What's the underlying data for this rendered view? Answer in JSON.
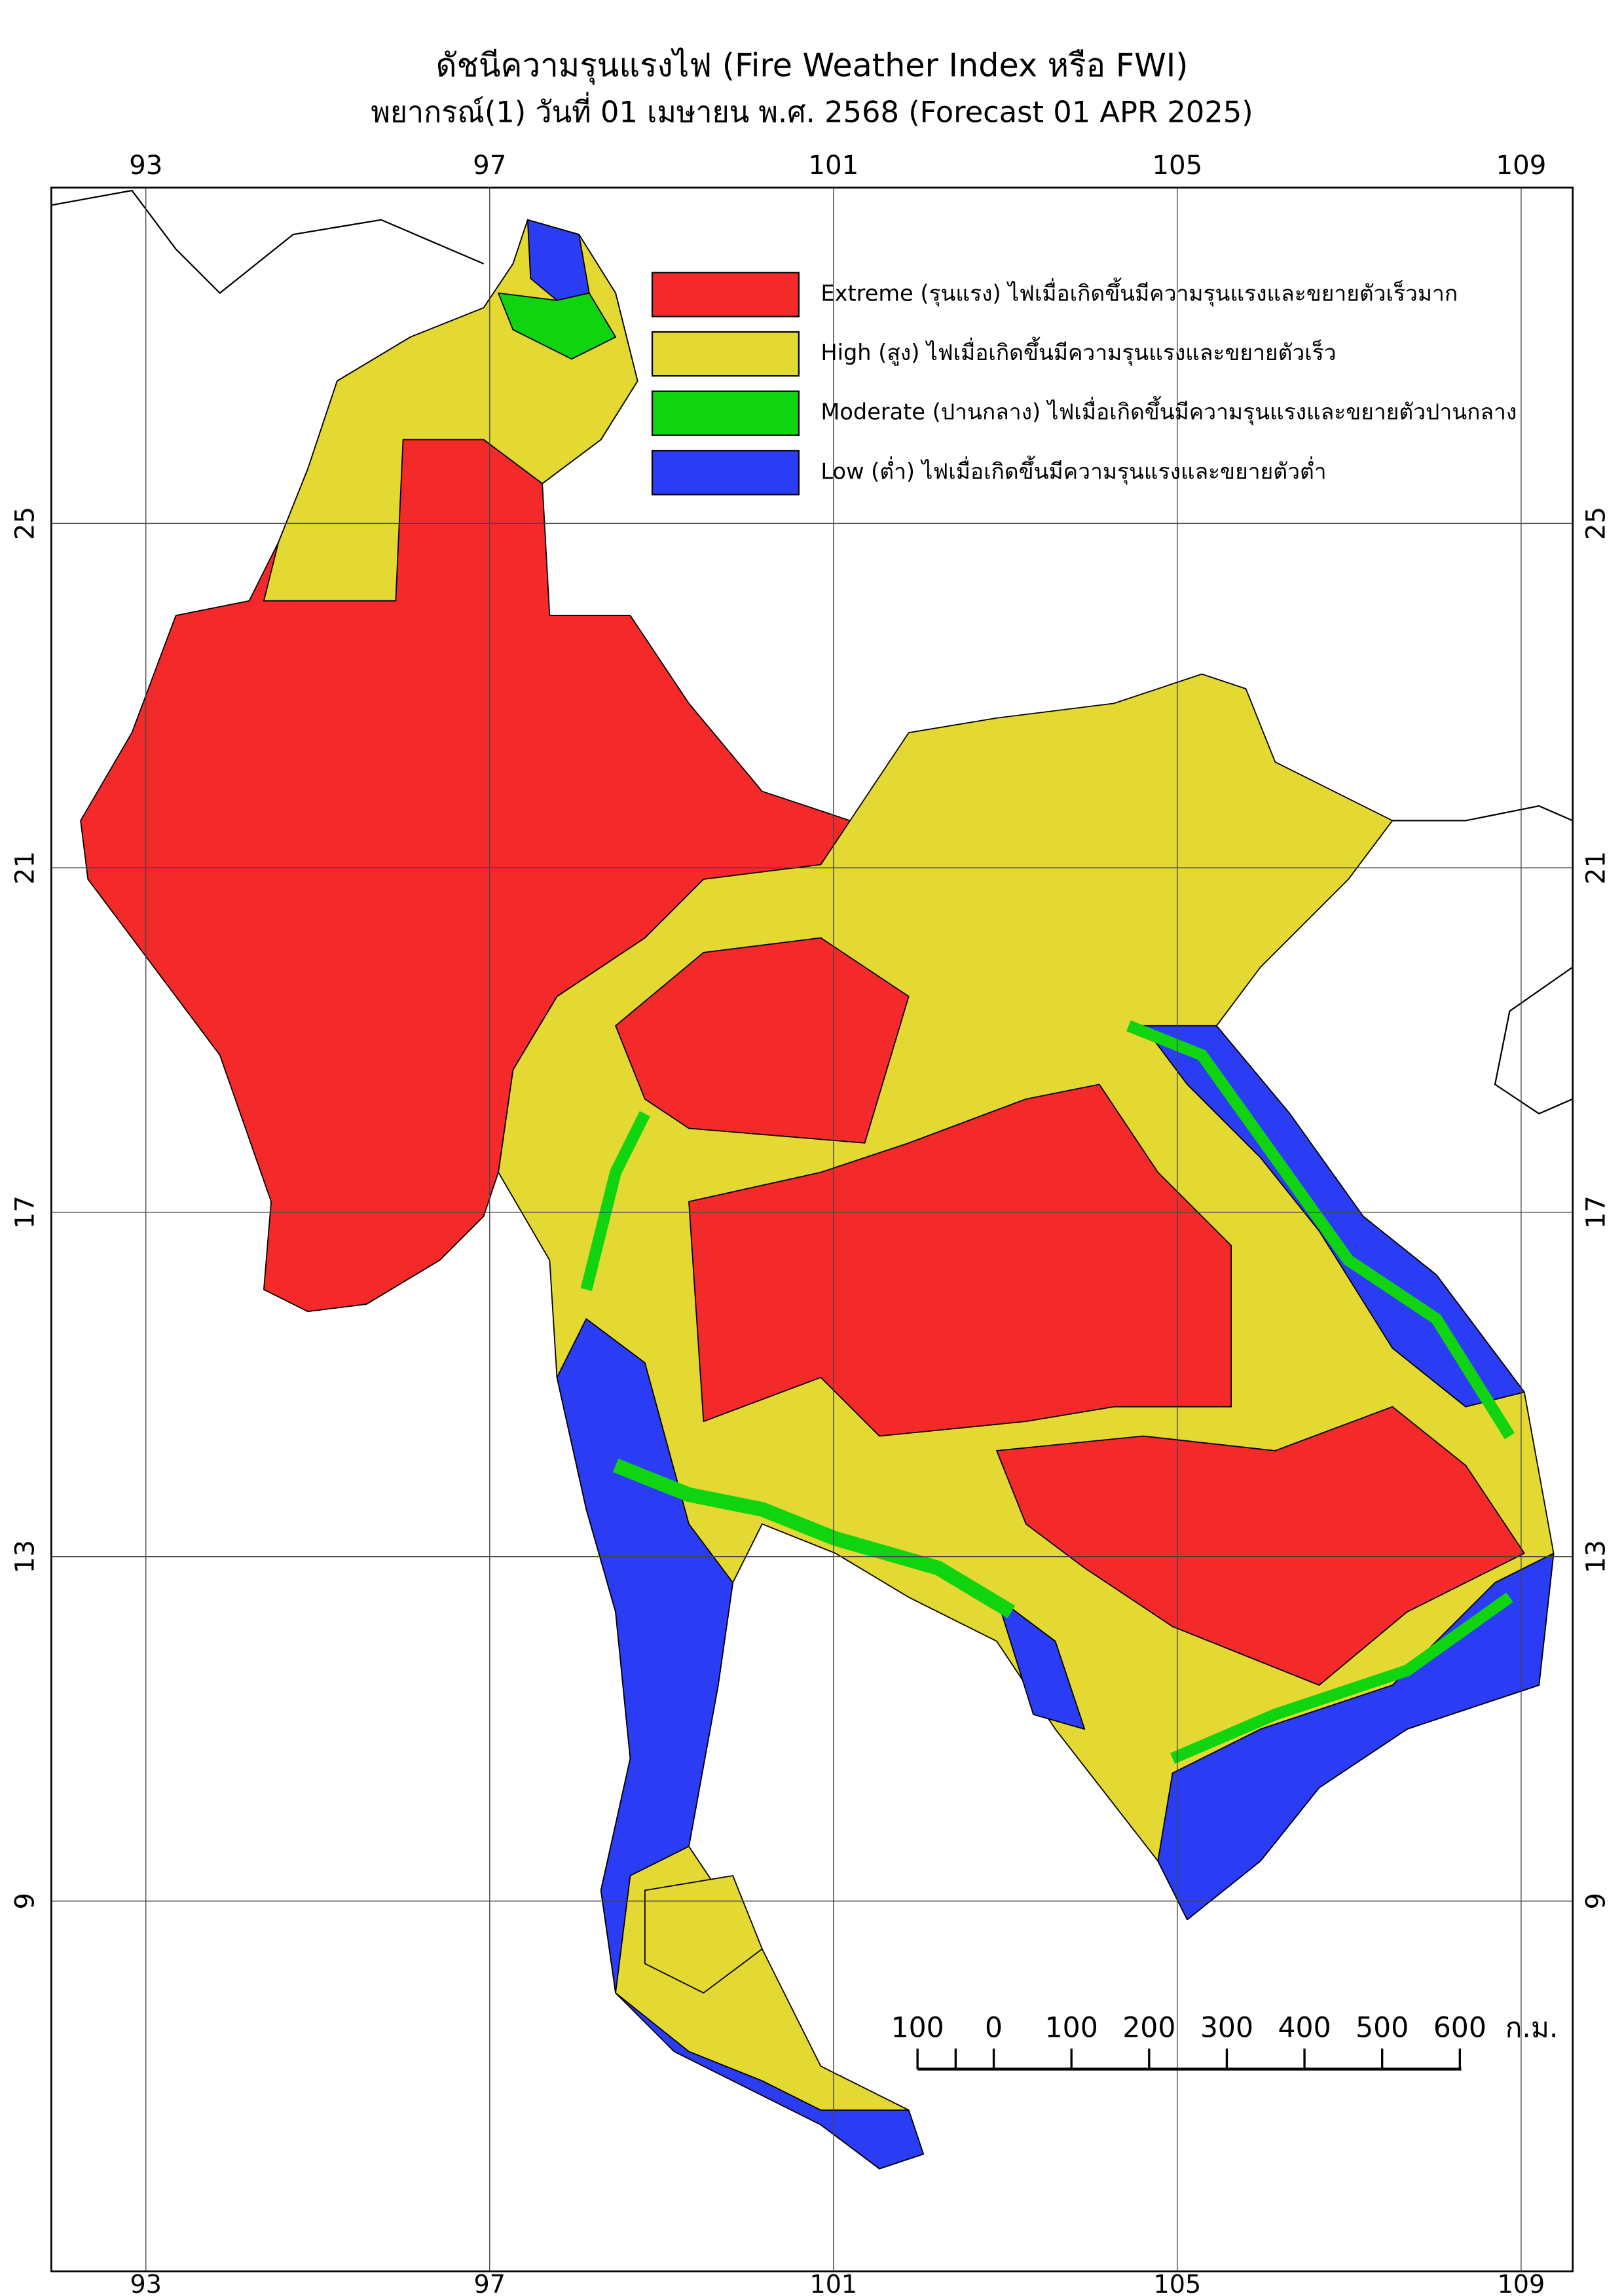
{
  "map": {
    "title": "ดัชนีความรุนแรงไฟ (Fire Weather Index หรือ FWI)",
    "subtitle": "พยากรณ์(1) วันที่ 01 เมษายน พ.ศ. 2568 (Forecast 01 APR 2025)",
    "xlim": [
      91.9,
      109.6
    ],
    "ylim": [
      4.7,
      28.9
    ],
    "xticks": [
      93,
      97,
      101,
      105,
      109
    ],
    "yticks": [
      25,
      21,
      17,
      13,
      9
    ],
    "grid": true,
    "legend": [
      {
        "label": "Extreme (รุนแรง) ไฟเมื่อเกิดขึ้นมีความรุนแรงและขยายตัวเร็วมาก",
        "color": "#f42a2a"
      },
      {
        "label": "High (สูง) ไฟเมื่อเกิดขึ้นมีความรุนแรงและขยายตัวเร็ว",
        "color": "#e4d832"
      },
      {
        "label": "Moderate (ปานกลาง) ไฟเมื่อเกิดขึ้นมีความรุนแรงและขยายตัวปานกลาง",
        "color": "#0fd40f"
      },
      {
        "label": "Low (ต่ำ) ไฟเมื่อเกิดขึ้นมีความรุนแรงและขยายตัวต่ำ",
        "color": "#2a3df4"
      }
    ],
    "scale_bar": {
      "labels": [
        "100",
        "0",
        "100",
        "200",
        "300",
        "400",
        "500",
        "600"
      ],
      "unit": "ก.ม."
    }
  }
}
